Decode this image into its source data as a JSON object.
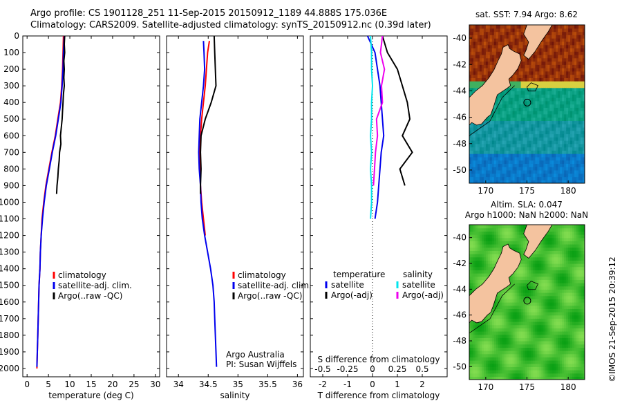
{
  "header": {
    "line1": "Argo profile: CS 1901128_251 11-Sep-2015 20150912_1189 44.888S 175.036E",
    "line2": "Climatology: CARS2009. Satellite-adjusted climatology: synTS_20150912.nc (0.39d later)"
  },
  "colors": {
    "climatology": "#ff0000",
    "satellite": "#0000ee",
    "argo": "#000000",
    "sat_salinity": "#00e5ee",
    "argo_salinity": "#ee00ee",
    "land": "#f4c39f"
  },
  "y_ticks": [
    "0",
    "100",
    "200",
    "300",
    "400",
    "500",
    "600",
    "700",
    "800",
    "900",
    "1000",
    "1100",
    "1200",
    "1300",
    "1400",
    "1500",
    "1600",
    "1700",
    "1800",
    "1900",
    "2000"
  ],
  "right_annotation": "©IMOS 21-Sep-2015 20:39:12",
  "chart_data": [
    {
      "type": "line",
      "id": "temperature",
      "xlabel": "temperature (deg C)",
      "xlim": [
        -1,
        31
      ],
      "ylim": [
        0,
        2050
      ],
      "x_ticks": [
        "0",
        "5",
        "10",
        "15",
        "20",
        "25",
        "30"
      ],
      "legend": [
        "climatology",
        "satellite-adj. clim.",
        "Argo(..raw -QC)"
      ],
      "series": [
        {
          "name": "climatology",
          "depth": [
            0,
            100,
            200,
            300,
            400,
            500,
            600,
            700,
            800,
            900,
            1000,
            1100,
            1200,
            1300,
            1400,
            1500,
            1600,
            1700,
            1800,
            1900,
            2000
          ],
          "values": [
            8.5,
            8.4,
            8.3,
            8.1,
            7.8,
            7.2,
            6.6,
            5.8,
            5.1,
            4.4,
            3.9,
            3.5,
            3.3,
            3.1,
            3.0,
            2.8,
            2.7,
            2.6,
            2.5,
            2.4,
            2.3
          ]
        },
        {
          "name": "satellite-adj. clim.",
          "depth": [
            0,
            100,
            200,
            300,
            400,
            500,
            600,
            700,
            800,
            900,
            1000,
            1100,
            1200,
            1300,
            1400,
            1500,
            1600,
            1700,
            1800,
            1900,
            1990
          ],
          "values": [
            8.7,
            8.5,
            8.4,
            8.2,
            7.9,
            7.3,
            6.7,
            5.9,
            5.2,
            4.5,
            4.0,
            3.6,
            3.3,
            3.1,
            3.0,
            2.8,
            2.7,
            2.6,
            2.5,
            2.4,
            2.3
          ]
        },
        {
          "name": "Argo(..raw -QC)",
          "depth": [
            0,
            50,
            100,
            150,
            200,
            250,
            300,
            350,
            400,
            450,
            500,
            550,
            600,
            650,
            700,
            750,
            800,
            850,
            900,
            950
          ],
          "values": [
            8.8,
            8.7,
            8.8,
            8.6,
            8.7,
            8.6,
            8.7,
            8.5,
            8.4,
            8.3,
            8.2,
            8.0,
            7.8,
            7.9,
            7.6,
            7.5,
            7.3,
            7.2,
            7.0,
            6.9
          ]
        }
      ]
    },
    {
      "type": "line",
      "id": "salinity",
      "xlabel": "salinity",
      "xlim": [
        33.8,
        36.1
      ],
      "ylim": [
        0,
        2050
      ],
      "x_ticks": [
        "34",
        "34.5",
        "35",
        "35.5",
        "36"
      ],
      "legend": [
        "climatology",
        "satellite-adj. clim.",
        "Argo(..raw -QC)"
      ],
      "credit": [
        "Argo Australia",
        "PI: Susan Wijffels"
      ],
      "series": [
        {
          "name": "climatology",
          "depth": [
            30,
            100,
            200,
            300,
            400,
            500,
            600,
            700,
            800,
            900,
            1000,
            1100,
            1200
          ],
          "values": [
            34.52,
            34.49,
            34.47,
            34.45,
            34.42,
            34.39,
            34.37,
            34.36,
            34.36,
            34.37,
            34.39,
            34.42,
            34.45
          ]
        },
        {
          "name": "satellite-adj. clim.",
          "depth": [
            30,
            100,
            200,
            300,
            400,
            500,
            600,
            700,
            800,
            900,
            1000,
            1100,
            1200,
            1300,
            1400,
            1500,
            1600,
            1700,
            1800,
            1900,
            1990
          ],
          "values": [
            34.42,
            34.43,
            34.44,
            34.42,
            34.39,
            34.36,
            34.35,
            34.34,
            34.35,
            34.37,
            34.38,
            34.4,
            34.44,
            34.49,
            34.54,
            34.58,
            34.6,
            34.61,
            34.62,
            34.63,
            34.64
          ]
        },
        {
          "name": "Argo(..raw -QC)",
          "depth": [
            0,
            100,
            200,
            300,
            400,
            500,
            600,
            700,
            800,
            900,
            950
          ],
          "values": [
            34.6,
            34.61,
            34.62,
            34.63,
            34.55,
            34.45,
            34.38,
            34.37,
            34.38,
            34.37,
            34.37
          ]
        }
      ]
    },
    {
      "type": "line",
      "id": "difference",
      "xlabel": "T difference from climatology",
      "x_top_label": "S difference from climatology",
      "xlim": [
        -2.5,
        3.0
      ],
      "ylim": [
        0,
        2050
      ],
      "x_ticks": [
        "-2",
        "-1",
        "0",
        "1",
        "2"
      ],
      "x_top_ticks": [
        "-0.5",
        "-0.25",
        "0",
        "0.25",
        "0.5"
      ],
      "legend_headers": [
        "temperature",
        "salinity"
      ],
      "legend": [
        "satellite",
        "Argo(-adj)",
        "satellite",
        "Argo(-adj)"
      ],
      "series": [
        {
          "name": "satellite",
          "quantity": "temperature",
          "depth": [
            0,
            100,
            200,
            300,
            400,
            500,
            600,
            700,
            800,
            900,
            1000,
            1100
          ],
          "values": [
            -0.2,
            0.1,
            0.2,
            0.3,
            0.35,
            0.4,
            0.45,
            0.35,
            0.3,
            0.25,
            0.2,
            0.1
          ]
        },
        {
          "name": "Argo(-adj)",
          "quantity": "temperature",
          "depth": [
            0,
            100,
            200,
            300,
            400,
            500,
            600,
            700,
            800,
            900
          ],
          "values": [
            0.4,
            0.6,
            1.0,
            1.2,
            1.4,
            1.5,
            1.2,
            1.6,
            1.1,
            1.3
          ]
        },
        {
          "name": "satellite",
          "quantity": "salinity",
          "depth": [
            0,
            100,
            200,
            300,
            400,
            500,
            600,
            700,
            800,
            900,
            1000,
            1100
          ],
          "values": [
            -0.02,
            -0.01,
            -0.01,
            0.0,
            -0.01,
            -0.01,
            -0.02,
            -0.01,
            -0.02,
            -0.01,
            -0.01,
            -0.02
          ]
        },
        {
          "name": "Argo(-adj)",
          "quantity": "salinity",
          "depth": [
            0,
            100,
            200,
            300,
            400,
            500,
            600,
            700,
            800,
            900
          ],
          "values": [
            0.1,
            0.08,
            0.12,
            0.09,
            0.1,
            0.04,
            0.05,
            0.03,
            0.02,
            0.01
          ]
        }
      ]
    },
    {
      "type": "heatmap",
      "id": "sst-map",
      "title": "sat. SST: 7.94 Argo: 8.62",
      "xlim": [
        168,
        182
      ],
      "ylim": [
        -51,
        -39
      ],
      "x_ticks": [
        "170",
        "175",
        "180"
      ],
      "y_ticks": [
        "-40",
        "-42",
        "-44",
        "-46",
        "-48",
        "-50"
      ],
      "profile_location": [
        175.036,
        -44.888
      ]
    },
    {
      "type": "heatmap",
      "id": "sla-map",
      "title": [
        "Altim. SLA: 0.047",
        "Argo h1000: NaN h2000: NaN"
      ],
      "xlim": [
        168,
        182
      ],
      "ylim": [
        -51,
        -39
      ],
      "x_ticks": [
        "170",
        "175",
        "180"
      ],
      "y_ticks": [
        "-40",
        "-42",
        "-44",
        "-46",
        "-48",
        "-50"
      ],
      "profile_location": [
        175.036,
        -44.888
      ]
    }
  ]
}
